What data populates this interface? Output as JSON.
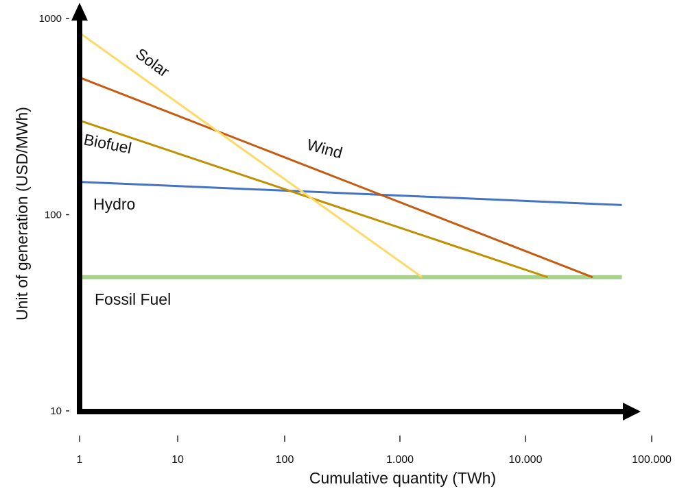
{
  "chart_data": {
    "type": "line",
    "title": "",
    "xlabel": "Cumulative quantity (TWh)",
    "ylabel": "Unit of generation (USD/MWh)",
    "x_scale": "log",
    "y_scale": "log",
    "xlim": [
      1,
      100000
    ],
    "ylim": [
      10,
      1000
    ],
    "grid": false,
    "legend": "none (inline labels)",
    "x_ticks": [
      {
        "value": 1,
        "label": "1"
      },
      {
        "value": 10,
        "label": "10"
      },
      {
        "value": 100,
        "label": "100"
      },
      {
        "value": 1000,
        "label": "1.000"
      },
      {
        "value": 10000,
        "label": "10.000"
      },
      {
        "value": 100000,
        "label": "100.000"
      }
    ],
    "y_ticks": [
      {
        "value": 1000,
        "label": "1000"
      },
      {
        "value": 100,
        "label": "100"
      },
      {
        "value": 10,
        "label": "10"
      }
    ],
    "series": [
      {
        "name": "Solar",
        "color": "#FFD966",
        "points": [
          [
            1,
            845
          ],
          [
            1500,
            48
          ]
        ]
      },
      {
        "name": "Wind",
        "color": "#C55A11",
        "points": [
          [
            1,
            500
          ],
          [
            34000,
            48
          ]
        ]
      },
      {
        "name": "Biofuel",
        "color": "#BF9000",
        "points": [
          [
            1,
            302
          ],
          [
            15000,
            48
          ]
        ]
      },
      {
        "name": "Hydro",
        "color": "#4472C4",
        "points": [
          [
            1,
            147
          ],
          [
            58000,
            112
          ]
        ]
      },
      {
        "name": "Fossil Fuel",
        "color": "#A9D18E",
        "points": [
          [
            1,
            48
          ],
          [
            58000,
            48
          ]
        ]
      }
    ]
  }
}
